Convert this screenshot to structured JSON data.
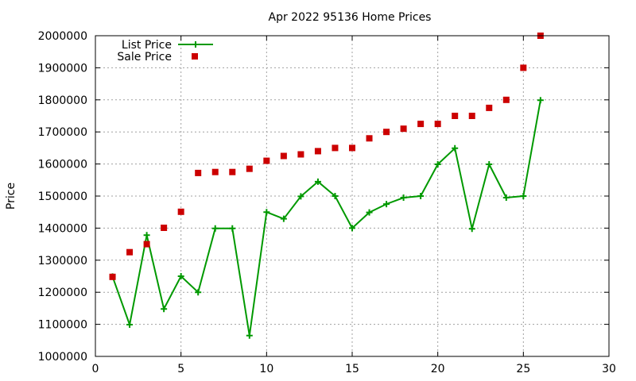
{
  "chart_data": {
    "type": "line",
    "title": "Apr 2022 95136 Home Prices",
    "xlabel": "",
    "ylabel": "Price",
    "xlim": [
      0,
      30
    ],
    "ylim": [
      1000000,
      2000000
    ],
    "x_ticks": [
      "0",
      "5",
      "10",
      "15",
      "20",
      "25",
      "30"
    ],
    "y_ticks": [
      "1000000",
      "1100000",
      "1200000",
      "1300000",
      "1400000",
      "1500000",
      "1600000",
      "1700000",
      "1800000",
      "1900000",
      "2000000"
    ],
    "grid": true,
    "legend_position": "top-left",
    "x": [
      1,
      2,
      3,
      4,
      5,
      6,
      7,
      8,
      9,
      10,
      11,
      12,
      13,
      14,
      15,
      16,
      17,
      18,
      19,
      20,
      21,
      22,
      23,
      24,
      25,
      26
    ],
    "series": [
      {
        "name": "List Price",
        "style": "linespoints",
        "color": "#009900",
        "values": [
          1249000,
          1099000,
          1378000,
          1148000,
          1250000,
          1200000,
          1399000,
          1399000,
          1065000,
          1450000,
          1429000,
          1499000,
          1545000,
          1500000,
          1400000,
          1449000,
          1475000,
          1495000,
          1500000,
          1599000,
          1649000,
          1398000,
          1599000,
          1495000,
          1500000,
          1799000
        ]
      },
      {
        "name": "Sale Price",
        "style": "points",
        "color": "#cc0000",
        "values": [
          1248000,
          1325000,
          1350000,
          1401000,
          1451000,
          1572000,
          1575000,
          1575000,
          1585000,
          1610000,
          1625000,
          1630000,
          1640000,
          1650000,
          1650000,
          1680000,
          1700000,
          1710000,
          1725000,
          1725000,
          1750000,
          1750000,
          1775000,
          1800000,
          1900000,
          2000000
        ]
      }
    ]
  }
}
